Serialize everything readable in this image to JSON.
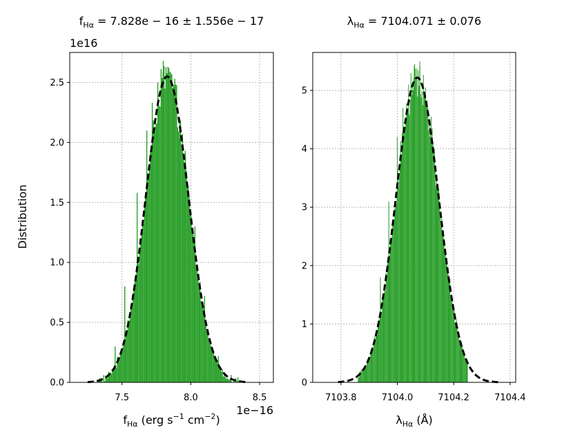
{
  "figure": {
    "ylabel": "Distribution"
  },
  "chart_data": [
    {
      "type": "histogram",
      "title": {
        "prefix": "f",
        "sub": "Hα",
        "suffix": " = 7.828e − 16  ±  1.556e − 17"
      },
      "xlabel": {
        "prefix": "f",
        "sub": "Hα",
        "mid": " (erg s",
        "sup1": "−1",
        "mid2": " cm",
        "sup2": "−2",
        "suffix": ")"
      },
      "x_offset_text": "1e−16",
      "y_offset_text": "1e16",
      "xlim": [
        7.12,
        8.6
      ],
      "ylim": [
        0,
        2.75
      ],
      "x_ticks": [
        7.5,
        8.0,
        8.5
      ],
      "x_tick_labels": [
        "7.5",
        "8.0",
        "8.5"
      ],
      "y_ticks": [
        0,
        0.5,
        1.0,
        1.5,
        2.0,
        2.5
      ],
      "y_tick_labels": [
        "0.0",
        "0.5",
        "1.0",
        "1.5",
        "2.0",
        "2.5"
      ],
      "grid": true,
      "hist_range": [
        7.3,
        8.36
      ],
      "fit": {
        "mean": 7.828,
        "sigma": 0.1556,
        "peak": 2.55,
        "range": [
          7.25,
          8.4
        ]
      },
      "noise_spikes": [
        {
          "x": 7.8,
          "y": 2.68
        },
        {
          "x": 7.84,
          "y": 2.62
        },
        {
          "x": 7.76,
          "y": 2.5
        },
        {
          "x": 7.88,
          "y": 2.45
        },
        {
          "x": 7.72,
          "y": 2.33
        },
        {
          "x": 7.92,
          "y": 2.2
        },
        {
          "x": 7.68,
          "y": 2.1
        },
        {
          "x": 7.96,
          "y": 1.93
        },
        {
          "x": 7.61,
          "y": 1.58
        },
        {
          "x": 8.03,
          "y": 1.3
        },
        {
          "x": 7.52,
          "y": 0.8
        },
        {
          "x": 8.1,
          "y": 0.72
        },
        {
          "x": 7.45,
          "y": 0.3
        },
        {
          "x": 8.2,
          "y": 0.22
        }
      ],
      "bar_color": "#2ca02c",
      "fit_color": "#000000"
    },
    {
      "type": "histogram",
      "title": {
        "prefix": "λ",
        "sub": "Hα",
        "suffix": " = 7104.071  ±  0.076"
      },
      "xlabel": {
        "prefix": "λ",
        "sub": "Hα",
        "mid": " (Å)",
        "sup1": "",
        "mid2": "",
        "sup2": "",
        "suffix": ""
      },
      "x_offset_text": "",
      "y_offset_text": "",
      "xlim": [
        7103.7,
        7104.42
      ],
      "ylim": [
        0,
        5.65
      ],
      "x_ticks": [
        7103.8,
        7104.0,
        7104.2,
        7104.4
      ],
      "x_tick_labels": [
        "7103.8",
        "7104.0",
        "7104.2",
        "7104.4"
      ],
      "y_ticks": [
        0,
        1,
        2,
        3,
        4,
        5
      ],
      "y_tick_labels": [
        "0",
        "1",
        "2",
        "3",
        "4",
        "5"
      ],
      "grid": true,
      "hist_range": [
        7103.86,
        7104.25
      ],
      "fit": {
        "mean": 7104.071,
        "sigma": 0.076,
        "peak": 5.22,
        "range": [
          7103.79,
          7104.36
        ]
      },
      "noise_spikes": [
        {
          "x": 7104.06,
          "y": 5.42
        },
        {
          "x": 7104.08,
          "y": 5.4
        },
        {
          "x": 7104.04,
          "y": 5.1
        },
        {
          "x": 7104.1,
          "y": 5.05
        },
        {
          "x": 7104.02,
          "y": 4.7
        },
        {
          "x": 7104.12,
          "y": 4.55
        },
        {
          "x": 7104.0,
          "y": 4.2
        },
        {
          "x": 7104.135,
          "y": 3.3
        },
        {
          "x": 7103.97,
          "y": 3.1
        },
        {
          "x": 7104.17,
          "y": 2.05
        },
        {
          "x": 7103.94,
          "y": 1.8
        },
        {
          "x": 7104.2,
          "y": 0.95
        },
        {
          "x": 7103.91,
          "y": 0.6
        },
        {
          "x": 7104.23,
          "y": 0.25
        }
      ],
      "bar_color": "#2ca02c",
      "fit_color": "#000000"
    }
  ]
}
